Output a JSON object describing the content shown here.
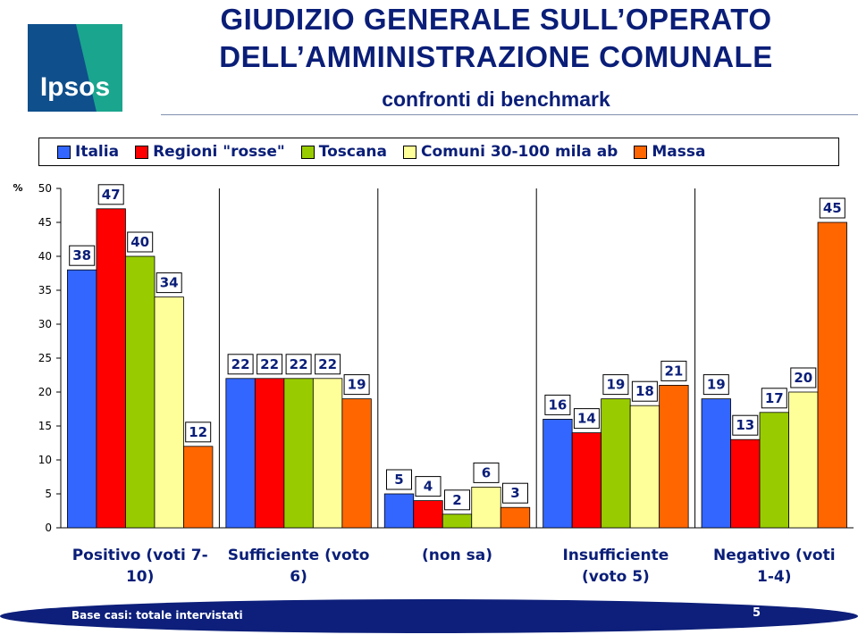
{
  "header": {
    "title_line1": "GIUDIZIO GENERALE SULL’OPERATO",
    "title_line2": "DELL’AMMINISTRAZIONE COMUNALE",
    "subtitle": "confronti di benchmark",
    "logo_text": "Ipsos"
  },
  "footer": {
    "base_text": "Base casi: totale intervistati",
    "page_number": "5"
  },
  "chart_data": {
    "type": "bar",
    "ylabel": "%",
    "ylim": [
      0,
      50
    ],
    "yticks": [
      0,
      5,
      10,
      15,
      20,
      25,
      30,
      35,
      40,
      45,
      50
    ],
    "grid": false,
    "legend_position": "top",
    "categories": [
      [
        "Positivo (voti 7-",
        "10)"
      ],
      [
        "Sufficiente (voto",
        "6)"
      ],
      [
        "(non sa)"
      ],
      [
        "Insufficiente",
        "(voto 5)"
      ],
      [
        "Negativo (voti",
        "1-4)"
      ]
    ],
    "series": [
      {
        "name": "Italia",
        "color": "#3366ff",
        "values": [
          38,
          22,
          5,
          16,
          19
        ]
      },
      {
        "name": "Regioni \"rosse\"",
        "color": "#ff0000",
        "values": [
          47,
          22,
          4,
          14,
          13
        ]
      },
      {
        "name": "Toscana",
        "color": "#99cc00",
        "values": [
          40,
          22,
          2,
          19,
          17
        ]
      },
      {
        "name": "Comuni 30-100 mila ab",
        "color": "#ffff99",
        "values": [
          34,
          22,
          6,
          18,
          20
        ]
      },
      {
        "name": "Massa",
        "color": "#ff6600",
        "values": [
          12,
          19,
          3,
          21,
          45
        ]
      }
    ]
  }
}
